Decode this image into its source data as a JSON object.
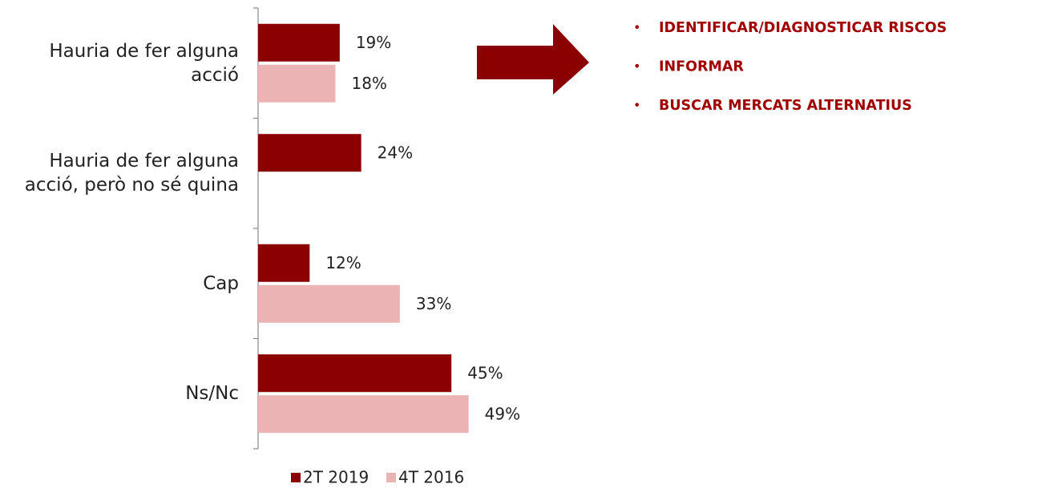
{
  "chart_data": {
    "type": "bar",
    "orientation": "horizontal",
    "categories": [
      "Hauria de fer alguna acció",
      "Hauria de fer alguna acció, però no sé quina",
      "Cap",
      "Ns/Nc"
    ],
    "series": [
      {
        "name": "2T 2019",
        "color": "#8b0000",
        "values": [
          19,
          24,
          12,
          45
        ],
        "value_labels": [
          "19%",
          "24%",
          "12%",
          "45%"
        ]
      },
      {
        "name": "4T 2016",
        "color": "#ebb3b3",
        "values": [
          18,
          null,
          33,
          49
        ],
        "value_labels": [
          "18%",
          null,
          "33%",
          "49%"
        ]
      }
    ],
    "legend": "bottom",
    "annotations": [
      "IDENTIFICAR/DIAGNOSTICAR RISCOS",
      "INFORMAR",
      "BUSCAR MERCATS ALTERNATIUS"
    ],
    "annotation_color": "#a00000"
  }
}
